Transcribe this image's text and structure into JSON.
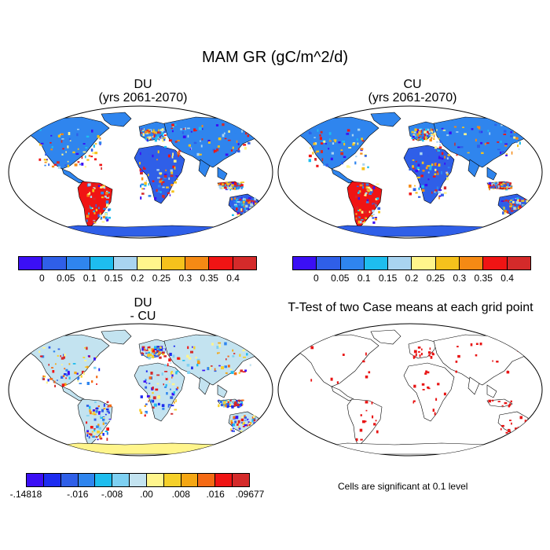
{
  "title": "MAM GR (gC/m^2/d)",
  "panels": {
    "du": {
      "title_line1": "DU",
      "title_line2": "(yrs 2061-2070)"
    },
    "cu": {
      "title_line1": "CU",
      "title_line2": "(yrs 2061-2070)"
    },
    "diff": {
      "title_line1": "DU",
      "title_line2": "- CU"
    },
    "ttest": {
      "title": "T-Test of two Case means at each grid point",
      "note": "Cells are significant at 0.1 level"
    }
  },
  "colorbar_abs": {
    "colors": [
      "#3b0ff5",
      "#2f5fe8",
      "#2f85ee",
      "#1ebdee",
      "#a9d4f0",
      "#fff58c",
      "#f5c21c",
      "#f58a14",
      "#f01414",
      "#d42a2a"
    ],
    "labels": [
      "0",
      "0.05",
      "0.1",
      "0.15",
      "0.2",
      "0.25",
      "0.3",
      "0.35",
      "0.4"
    ]
  },
  "colorbar_diff": {
    "colors": [
      "#3b0ff5",
      "#1d2cf0",
      "#2f5fe8",
      "#2f85ee",
      "#1ebdee",
      "#7ed0f2",
      "#c3e3f0",
      "#fff58c",
      "#f5d02a",
      "#f5a714",
      "#f56a14",
      "#f01414",
      "#d42a2a"
    ],
    "labels": [
      "-.14818",
      "-.016",
      "-.008",
      ".00",
      ".008",
      ".016",
      ".09677"
    ]
  },
  "colors": {
    "significant": "#e81414"
  }
}
